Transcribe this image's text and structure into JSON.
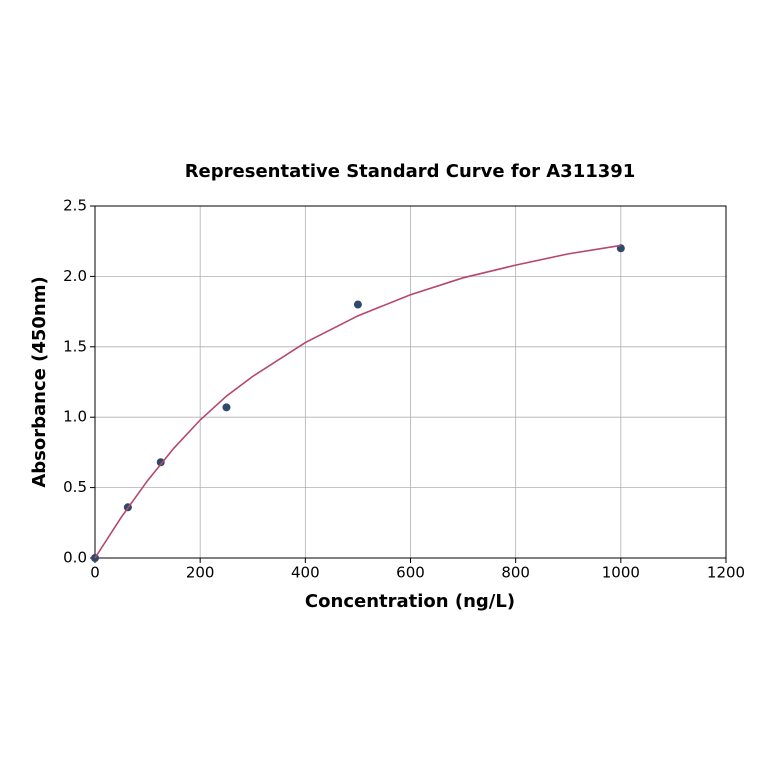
{
  "chart_data": {
    "type": "scatter",
    "title": "Representative Standard Curve for A311391",
    "x_label": "Concentration (ng/L)",
    "y_label": "Absorbance (450nm)",
    "xlim": [
      0,
      1200
    ],
    "xticks": [
      0,
      200,
      400,
      600,
      800,
      1000,
      1200
    ],
    "ylim": [
      0,
      2.5
    ],
    "yticks": [
      {
        "value": 0,
        "label": "0.0"
      },
      0.5,
      {
        "value": 1,
        "label": "1.0"
      },
      1.5,
      {
        "value": 2,
        "label": "2.0"
      },
      2.5
    ],
    "grid": true,
    "series": [
      {
        "type": "scatter",
        "color": "#2e4a6b",
        "x": [
          0,
          62.5,
          125,
          250,
          500,
          1000
        ],
        "values": [
          0,
          0.36,
          0.68,
          1.07,
          1.8,
          2.2
        ]
      },
      {
        "type": "line",
        "color": "#b5476a",
        "x": [
          0,
          50,
          100,
          150,
          200,
          250,
          300,
          400,
          500,
          600,
          700,
          800,
          900,
          1000
        ],
        "values": [
          0,
          0.29,
          0.55,
          0.78,
          0.98,
          1.15,
          1.29,
          1.53,
          1.72,
          1.87,
          1.99,
          2.08,
          2.16,
          2.22
        ]
      }
    ]
  }
}
